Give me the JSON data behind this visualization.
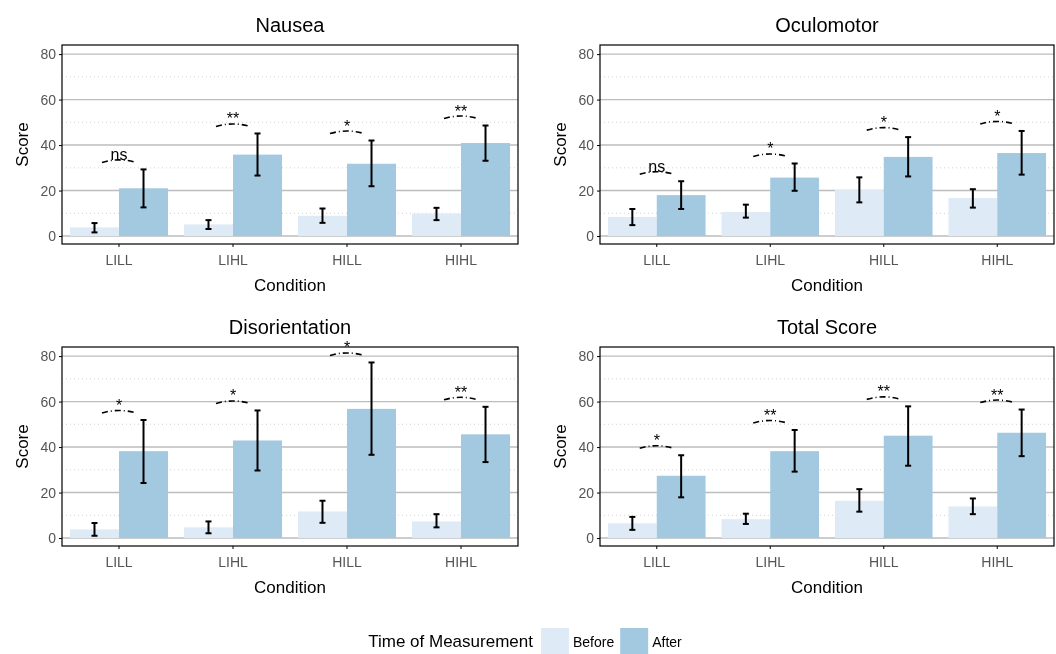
{
  "chart_data": [
    {
      "type": "bar",
      "title": "Nausea",
      "xlabel": "Condition",
      "ylabel": "Score",
      "categories": [
        "LILL",
        "LIHL",
        "HILL",
        "HIHL"
      ],
      "ylim": [
        -3.5,
        84
      ],
      "yticks": [
        0,
        20,
        40,
        60,
        80
      ],
      "grid": true,
      "series": [
        {
          "color": "#deebf7",
          "values": [
            3.8,
            5.1,
            8.9,
            9.9
          ],
          "errors": [
            [
              1.6,
              5.7
            ],
            [
              3.1,
              7.0
            ],
            [
              5.8,
              12.1
            ],
            [
              7.0,
              12.4
            ]
          ]
        },
        {
          "color": "#a3c9e1",
          "values": [
            21.0,
            35.8,
            31.8,
            40.9
          ],
          "errors": [
            [
              12.6,
              29.3
            ],
            [
              26.6,
              45.1
            ],
            [
              21.9,
              42.0
            ],
            [
              33.1,
              48.6
            ]
          ]
        }
      ],
      "annotations": [
        "ns",
        "**",
        "*",
        "**"
      ]
    },
    {
      "type": "bar",
      "title": "Oculomotor",
      "xlabel": "Condition",
      "ylabel": "Score",
      "categories": [
        "LILL",
        "LIHL",
        "HILL",
        "HIHL"
      ],
      "ylim": [
        -3.5,
        84
      ],
      "yticks": [
        0,
        20,
        40,
        60,
        80
      ],
      "grid": true,
      "series": [
        {
          "color": "#deebf7",
          "values": [
            8.4,
            10.6,
            20.3,
            16.7
          ],
          "errors": [
            [
              4.8,
              11.9
            ],
            [
              8.1,
              13.8
            ],
            [
              14.8,
              25.8
            ],
            [
              12.5,
              20.6
            ]
          ]
        },
        {
          "color": "#a3c9e1",
          "values": [
            18.0,
            25.7,
            34.8,
            36.5
          ],
          "errors": [
            [
              11.9,
              24.1
            ],
            [
              19.9,
              31.9
            ],
            [
              26.2,
              43.5
            ],
            [
              27.0,
              46.2
            ]
          ]
        }
      ],
      "annotations": [
        "ns",
        "*",
        "*",
        "*"
      ]
    },
    {
      "type": "bar",
      "title": "Disorientation",
      "xlabel": "Condition",
      "ylabel": "Score",
      "categories": [
        "LILL",
        "LIHL",
        "HILL",
        "HIHL"
      ],
      "ylim": [
        -3.5,
        84
      ],
      "yticks": [
        0,
        20,
        40,
        60,
        80
      ],
      "grid": true,
      "series": [
        {
          "color": "#deebf7",
          "values": [
            3.8,
            4.7,
            11.7,
            7.3
          ],
          "errors": [
            [
              1.0,
              6.6
            ],
            [
              2.1,
              7.3
            ],
            [
              6.7,
              16.4
            ],
            [
              4.7,
              10.5
            ]
          ]
        },
        {
          "color": "#a3c9e1",
          "values": [
            38.2,
            42.9,
            56.8,
            45.6
          ],
          "errors": [
            [
              24.2,
              51.9
            ],
            [
              29.7,
              56.1
            ],
            [
              36.6,
              77.2
            ],
            [
              33.4,
              57.7
            ]
          ]
        }
      ],
      "annotations": [
        "*",
        "*",
        "*",
        "**"
      ]
    },
    {
      "type": "bar",
      "title": "Total Score",
      "xlabel": "Condition",
      "ylabel": "Score",
      "categories": [
        "LILL",
        "LIHL",
        "HILL",
        "HIHL"
      ],
      "ylim": [
        -3.5,
        84
      ],
      "yticks": [
        0,
        20,
        40,
        60,
        80
      ],
      "grid": true,
      "legend": "bottom",
      "legend_title": "Time of Measurement",
      "series": [
        {
          "name": "Before",
          "color": "#deebf7",
          "values": [
            6.5,
            8.3,
            16.4,
            13.9
          ],
          "errors": [
            [
              3.6,
              9.3
            ],
            [
              6.2,
              10.7
            ],
            [
              11.6,
              21.5
            ],
            [
              10.5,
              17.4
            ]
          ]
        },
        {
          "name": "After",
          "color": "#a3c9e1",
          "values": [
            27.4,
            38.2,
            45.0,
            46.3
          ],
          "errors": [
            [
              17.9,
              36.4
            ],
            [
              29.2,
              47.5
            ],
            [
              31.8,
              57.9
            ],
            [
              36.0,
              56.5
            ]
          ]
        }
      ],
      "annotations": [
        "*",
        "**",
        "**",
        "**"
      ]
    }
  ]
}
